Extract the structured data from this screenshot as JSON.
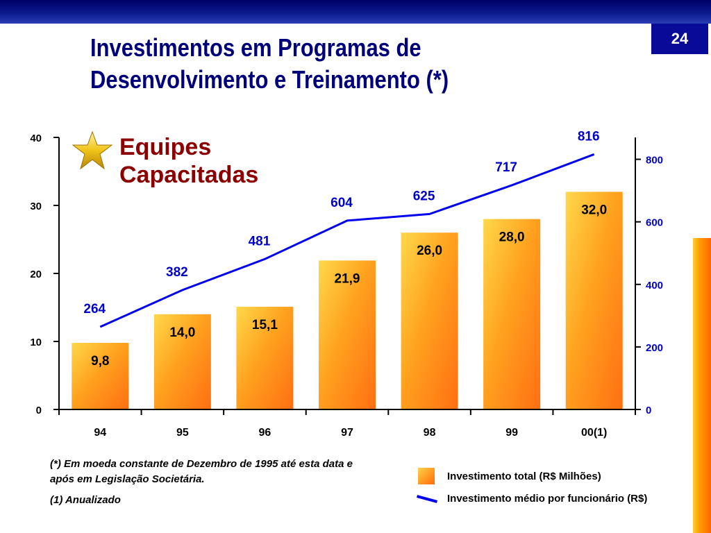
{
  "page_number": "24",
  "title_lines": [
    "Investimentos em Programas de",
    "Desenvolvimento e Treinamento (*)"
  ],
  "subtitle_lines": [
    "Equipes",
    "Capacitadas"
  ],
  "icon": "star-icon",
  "colors": {
    "title": "#00007a",
    "subtitle": "#8b0000",
    "line": "#0000ee",
    "bar": "#ff9900"
  },
  "chart_data": {
    "type": "bar+line",
    "categories": [
      "94",
      "95",
      "96",
      "97",
      "98",
      "99",
      "00(1)"
    ],
    "series": [
      {
        "name": "Investimento total (R$ Milhões)",
        "type": "bar",
        "axis": "left",
        "values": [
          9.8,
          14.0,
          15.1,
          21.9,
          26.0,
          28.0,
          32.0
        ],
        "labels": [
          "9,8",
          "14,0",
          "15,1",
          "21,9",
          "26,0",
          "28,0",
          "32,0"
        ]
      },
      {
        "name": "Investimento médio por funcionário (R$)",
        "type": "line",
        "axis": "right",
        "values": [
          264,
          382,
          481,
          604,
          625,
          717,
          816
        ],
        "labels": [
          "264",
          "382",
          "481",
          "604",
          "625",
          "717",
          "816"
        ]
      }
    ],
    "y_left": {
      "range": [
        0,
        40
      ],
      "ticks": [
        "0",
        "10",
        "20",
        "30",
        "40"
      ]
    },
    "y_right": {
      "range": [
        0,
        870
      ],
      "ticks": [
        "0",
        "200",
        "400",
        "600",
        "800"
      ]
    },
    "legend_position": "bottom-right"
  },
  "footnotes": [
    "(*)  Em moeda constante de Dezembro de 1995 até esta data e após em Legislação Societária.",
    "(1)  Anualizado"
  ],
  "legend": {
    "bars": "Investimento total (R$ Milhões)",
    "line": "Investimento médio por funcionário (R$)"
  }
}
